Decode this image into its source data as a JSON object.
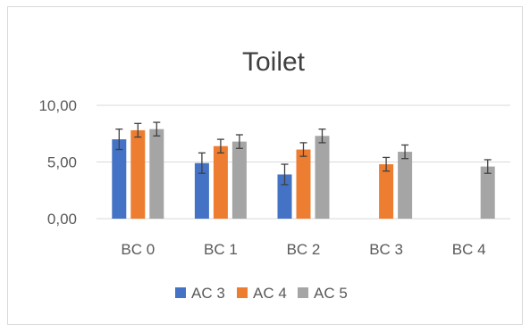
{
  "chart_data": {
    "type": "bar",
    "title": "Toilet",
    "xlabel": "",
    "ylabel": "",
    "categories": [
      "BC 0",
      "BC 1",
      "BC 2",
      "BC 3",
      "BC 4"
    ],
    "yticks": [
      "0,00",
      "5,00",
      "10,00"
    ],
    "ylim": [
      0,
      10
    ],
    "grid": true,
    "legend_position": "bottom",
    "series": [
      {
        "name": "AC 3",
        "color": "#4472C4",
        "values": [
          7.0,
          4.9,
          3.9,
          null,
          null
        ],
        "errors": [
          0.9,
          0.9,
          0.9,
          null,
          null
        ]
      },
      {
        "name": "AC 4",
        "color": "#ED7D31",
        "values": [
          7.8,
          6.4,
          6.1,
          4.8,
          null
        ],
        "errors": [
          0.6,
          0.6,
          0.6,
          0.6,
          null
        ]
      },
      {
        "name": "AC 5",
        "color": "#A5A5A5",
        "values": [
          7.9,
          6.8,
          7.3,
          5.9,
          4.6
        ],
        "errors": [
          0.6,
          0.6,
          0.6,
          0.6,
          0.6
        ]
      }
    ]
  }
}
